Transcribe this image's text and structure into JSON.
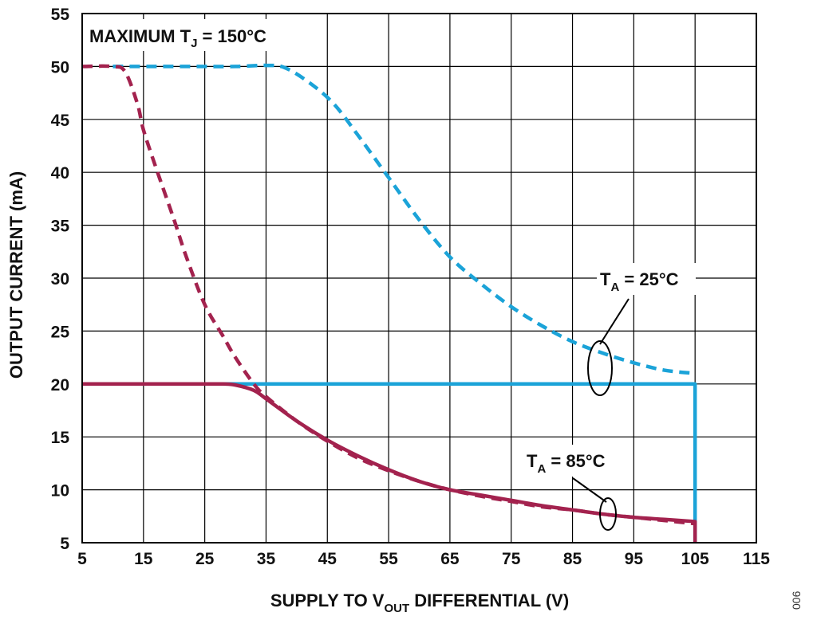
{
  "chart_data": {
    "type": "line",
    "xlabel": {
      "main": "SUPPLY TO V",
      "sub": "OUT",
      "tail": " DIFFERENTIAL (V)"
    },
    "ylabel": "OUTPUT CURRENT (mA)",
    "xlim": [
      5,
      115
    ],
    "ylim": [
      5,
      55
    ],
    "xticks": [
      5,
      15,
      25,
      35,
      45,
      55,
      65,
      75,
      85,
      95,
      105,
      115
    ],
    "yticks": [
      5,
      10,
      15,
      20,
      25,
      30,
      35,
      40,
      45,
      50,
      55
    ],
    "grid": true,
    "annotations": {
      "max_tj": {
        "main": "MAXIMUM T",
        "sub": "J",
        "tail": " = 150°C"
      },
      "ta25": {
        "main": "T",
        "sub": "A",
        "tail": " = 25°C"
      },
      "ta85": {
        "main": "T",
        "sub": "A",
        "tail": " = 85°C"
      }
    },
    "figure_code": "006",
    "colors": {
      "ta25": "#1ba3d8",
      "ta85": "#a3224e",
      "grid": "#000000"
    },
    "series": [
      {
        "id": "ta25_max",
        "style": "dashed",
        "color": "#1ba3d8",
        "x": [
          10,
          15,
          20,
          25,
          30,
          35,
          38,
          42,
          46,
          50,
          55,
          60,
          65,
          70,
          75,
          80,
          85,
          90,
          95,
          100,
          105
        ],
        "y": [
          50,
          50,
          50,
          50,
          50,
          50.1,
          49.9,
          48.5,
          46.5,
          43.5,
          39.5,
          35.5,
          32,
          29.5,
          27.3,
          25.5,
          24,
          22.9,
          22,
          21.3,
          21
        ]
      },
      {
        "id": "ta85_max",
        "style": "dashed",
        "color": "#a3224e",
        "x": [
          5,
          10,
          12,
          14,
          15,
          17,
          20,
          22,
          25,
          28,
          30,
          33,
          35,
          40,
          45,
          50,
          55,
          60,
          65,
          70,
          75,
          80,
          85,
          90,
          95,
          100,
          105
        ],
        "y": [
          50,
          50,
          49.5,
          46.5,
          44,
          40.5,
          35.5,
          32,
          27.5,
          24.5,
          22.5,
          20,
          18.8,
          16.5,
          14.6,
          13,
          11.8,
          10.8,
          10,
          9.4,
          8.9,
          8.4,
          8.1,
          7.7,
          7.4,
          7.1,
          6.8
        ]
      },
      {
        "id": "ta25_limit",
        "style": "solid",
        "color": "#1ba3d8",
        "x": [
          5,
          105,
          105
        ],
        "y": [
          20,
          20,
          5
        ]
      },
      {
        "id": "ta85_limit",
        "style": "solid",
        "color": "#a3224e",
        "x": [
          5,
          20,
          25,
          28,
          30,
          33,
          35,
          40,
          45,
          50,
          55,
          60,
          65,
          70,
          75,
          80,
          85,
          90,
          95,
          100,
          105,
          105
        ],
        "y": [
          20,
          20,
          20,
          20,
          19.9,
          19.4,
          18.6,
          16.5,
          14.7,
          13.2,
          11.9,
          10.8,
          10,
          9.5,
          9,
          8.5,
          8.1,
          7.7,
          7.4,
          7.2,
          7,
          5
        ]
      }
    ]
  }
}
